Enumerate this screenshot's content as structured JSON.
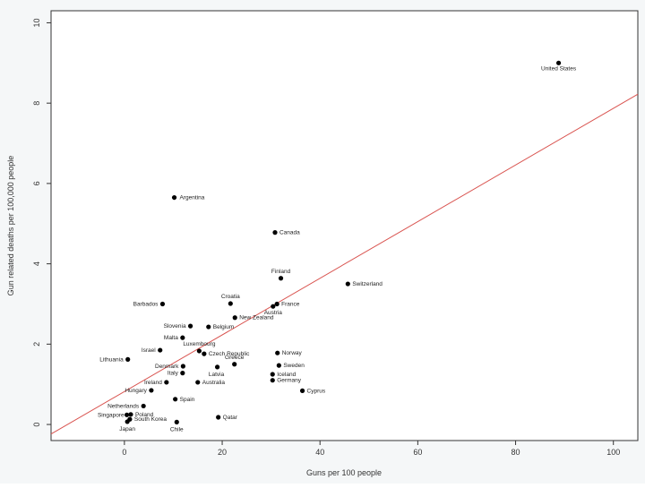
{
  "chart_data": {
    "type": "scatter",
    "title": "",
    "xlabel": "Guns per 100 people",
    "ylabel": "Gun related deaths per 100,000 people",
    "xlim": [
      -15,
      105
    ],
    "ylim": [
      -0.4,
      10.3
    ],
    "x_ticks": [
      "0",
      "20",
      "40",
      "60",
      "80",
      "100"
    ],
    "y_ticks": [
      "0",
      "2",
      "4",
      "6",
      "8",
      "10"
    ],
    "grid": false,
    "colors": {
      "points": "#000000",
      "trend_line": "#d9534f",
      "panel": "#ffffff",
      "frame": "#333333"
    },
    "points": [
      {
        "label": "United States",
        "x": 88.8,
        "y": 9.0
      },
      {
        "label": "Argentina",
        "x": 10.2,
        "y": 5.65
      },
      {
        "label": "Canada",
        "x": 30.8,
        "y": 4.78
      },
      {
        "label": "Finland",
        "x": 32.0,
        "y": 3.64
      },
      {
        "label": "Switzerland",
        "x": 45.7,
        "y": 3.5
      },
      {
        "label": "Croatia",
        "x": 21.7,
        "y": 3.01
      },
      {
        "label": "France",
        "x": 31.2,
        "y": 3.0
      },
      {
        "label": "Austria",
        "x": 30.4,
        "y": 2.94
      },
      {
        "label": "Barbados",
        "x": 7.8,
        "y": 3.0
      },
      {
        "label": "New Zealand",
        "x": 22.6,
        "y": 2.66
      },
      {
        "label": "Slovenia",
        "x": 13.5,
        "y": 2.45
      },
      {
        "label": "Belgium",
        "x": 17.2,
        "y": 2.43
      },
      {
        "label": "Malta",
        "x": 11.9,
        "y": 2.16
      },
      {
        "label": "Luxembourg",
        "x": 15.3,
        "y": 1.83
      },
      {
        "label": "Israel",
        "x": 7.3,
        "y": 1.85
      },
      {
        "label": "Norway",
        "x": 31.3,
        "y": 1.78
      },
      {
        "label": "Czech Republic",
        "x": 16.3,
        "y": 1.76
      },
      {
        "label": "Lithuania",
        "x": 0.7,
        "y": 1.62
      },
      {
        "label": "Greece",
        "x": 22.5,
        "y": 1.5
      },
      {
        "label": "Sweden",
        "x": 31.6,
        "y": 1.47
      },
      {
        "label": "Denmark",
        "x": 12.0,
        "y": 1.45
      },
      {
        "label": "Latvia",
        "x": 19.0,
        "y": 1.43
      },
      {
        "label": "Italy",
        "x": 11.9,
        "y": 1.28
      },
      {
        "label": "Iceland",
        "x": 30.3,
        "y": 1.25
      },
      {
        "label": "Germany",
        "x": 30.3,
        "y": 1.1
      },
      {
        "label": "Ireland",
        "x": 8.6,
        "y": 1.05
      },
      {
        "label": "Australia",
        "x": 15.0,
        "y": 1.05
      },
      {
        "label": "Cyprus",
        "x": 36.4,
        "y": 0.84
      },
      {
        "label": "Hungary",
        "x": 5.5,
        "y": 0.85
      },
      {
        "label": "Spain",
        "x": 10.4,
        "y": 0.63
      },
      {
        "label": "Netherlands",
        "x": 3.9,
        "y": 0.46
      },
      {
        "label": "Poland",
        "x": 1.3,
        "y": 0.25
      },
      {
        "label": "Singapore",
        "x": 0.5,
        "y": 0.24
      },
      {
        "label": "Qatar",
        "x": 19.2,
        "y": 0.18
      },
      {
        "label": "South Korea",
        "x": 1.1,
        "y": 0.13
      },
      {
        "label": "Chile",
        "x": 10.7,
        "y": 0.06
      },
      {
        "label": "Japan",
        "x": 0.6,
        "y": 0.07
      }
    ],
    "trend_line": {
      "slope": 0.0705,
      "intercept": 0.82
    }
  }
}
